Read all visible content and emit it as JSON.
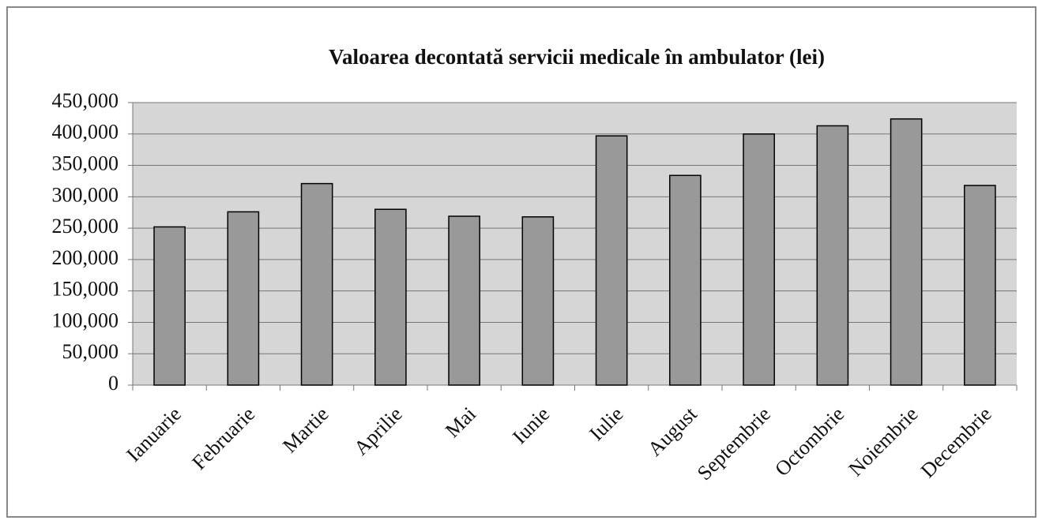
{
  "chart_data": {
    "type": "bar",
    "title": "Valoarea decontată servicii medicale în ambulator (lei)",
    "categories": [
      "Ianuarie",
      "Februarie",
      "Martie",
      "Aprilie",
      "Mai",
      "Iunie",
      "Iulie",
      "August",
      "Septembrie",
      "Octombrie",
      "Noiembrie",
      "Decembrie"
    ],
    "values": [
      252000,
      276000,
      321000,
      280000,
      269000,
      268000,
      397000,
      334000,
      400000,
      413000,
      424000,
      318000
    ],
    "color": "#999999",
    "ylim": [
      0,
      450000
    ],
    "yticks": [
      0,
      {
        "value": 50000,
        "label": "50,000"
      },
      {
        "value": 100000,
        "label": "100,000"
      },
      {
        "value": 150000,
        "label": "150,000"
      },
      {
        "value": 200000,
        "label": "200,000"
      },
      {
        "value": 250000,
        "label": "250,000"
      },
      {
        "value": 300000,
        "label": "300,000"
      },
      {
        "value": 350000,
        "label": "350,000"
      },
      {
        "value": 400000,
        "label": "400,000"
      },
      {
        "value": 450000,
        "label": "450,000"
      }
    ],
    "grid": true
  }
}
